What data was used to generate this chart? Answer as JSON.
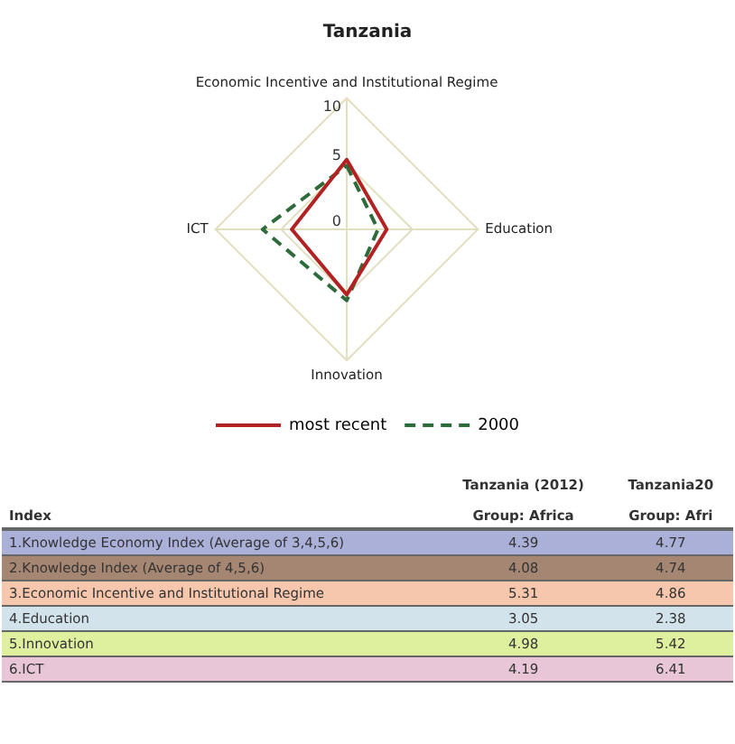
{
  "chart_data": [
    {
      "type": "radar",
      "title": "Tanzania",
      "categories": [
        "Economic Incentive and Institutional Regime",
        "Education",
        "Innovation",
        "ICT"
      ],
      "series": [
        {
          "name": "most recent",
          "color": "#b22222",
          "values": [
            5.31,
            3.05,
            4.98,
            4.19
          ],
          "line_style": "solid"
        },
        {
          "name": "2000",
          "color": "#2e6b3a",
          "values": [
            4.86,
            2.38,
            5.42,
            6.41
          ],
          "line_style": "dashed"
        }
      ],
      "ylim": [
        0,
        10
      ],
      "yticks": [
        0,
        5,
        10
      ],
      "grid": true,
      "legend": "bottom",
      "marker": "none"
    },
    {
      "type": "other",
      "xlabel": "Index",
      "categories": [
        "1.Knowledge Economy Index (Average of 3,4,5,6)",
        "2.Knowledge Index (Average of 4,5,6)",
        "3.Economic Incentive and Institutional Regime",
        "4.Education",
        "5.Innovation",
        "6.ICT"
      ],
      "colors": [
        "#aab0d8",
        "#a58672",
        "#f6c7ac",
        "#d3e3ec",
        "#deef9e",
        "#e8c6d8"
      ],
      "series": [
        {
          "name": "Tanzania (2012)",
          "values": [
            4.39,
            4.08,
            5.31,
            3.05,
            4.98,
            4.19
          ],
          "colors": [
            "#aab0d8",
            "#a58672",
            "#f6c7ac",
            "#d3e3ec",
            "#deef9e",
            "#e8c6d8"
          ]
        },
        {
          "name": "Tanzania20",
          "values": [
            4.77,
            4.74,
            4.86,
            2.38,
            5.42,
            6.41
          ],
          "colors": [
            "#aab0d8",
            "#a58672",
            "#f6c7ac",
            "#d3e3ec",
            "#deef9e",
            "#e8c6d8"
          ]
        }
      ],
      "annotations": [
        "Group: Africa",
        "Group: Afri"
      ],
      "data_labels": true
    }
  ]
}
